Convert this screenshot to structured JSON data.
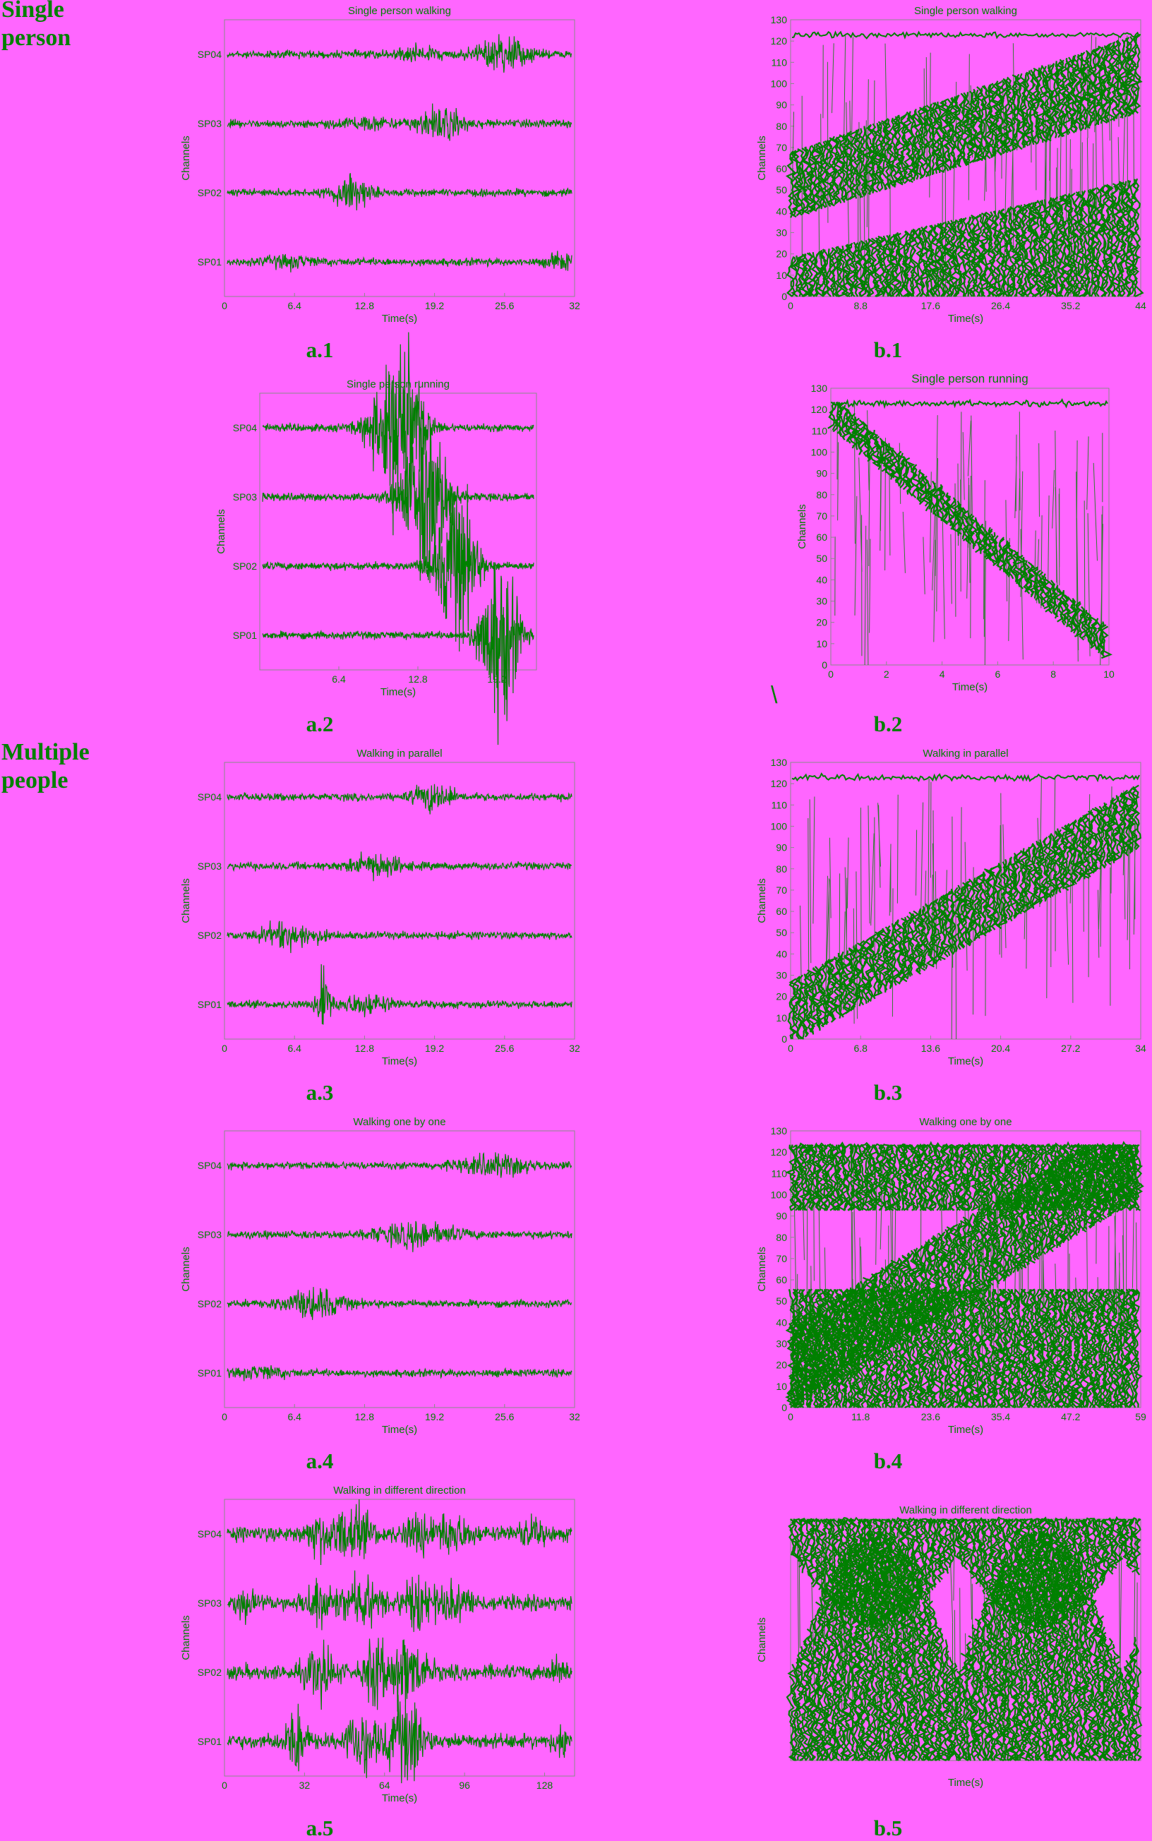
{
  "sections": [
    "Single\nperson",
    "Multiple\npeople"
  ],
  "stray_mark": "\\",
  "colors": {
    "background": "#ff66ff",
    "trace": "#008000",
    "axis": "#8a8a8a",
    "text": "#008000"
  },
  "captions": [
    "a.1",
    "b.1",
    "a.2",
    "b.2",
    "a.3",
    "b.3",
    "a.4",
    "b.4",
    "a.5",
    "b.5"
  ],
  "chart_data": [
    {
      "id": "a1",
      "type": "line",
      "title": "Single person walking",
      "xlabel": "Time(s)",
      "ylabel": "Channels",
      "xticks": [
        "0",
        "6.4",
        "12.8",
        "19.2",
        "25.6",
        "32"
      ],
      "xlim": [
        0,
        32
      ],
      "series": [
        {
          "name": "SP04"
        },
        {
          "name": "SP03"
        },
        {
          "name": "SP02"
        },
        {
          "name": "SP01"
        }
      ]
    },
    {
      "id": "b1",
      "type": "heatmap",
      "title": "Single person walking",
      "xlabel": "Time(s)",
      "ylabel": "Channels",
      "xticks": [
        "0",
        "8.8",
        "17.6",
        "26.4",
        "35.2",
        "44"
      ],
      "xlim": [
        0,
        44
      ],
      "yticks": [
        "0",
        "10",
        "20",
        "30",
        "40",
        "50",
        "60",
        "70",
        "80",
        "90",
        "100",
        "110",
        "120",
        "130"
      ],
      "ylim": [
        0,
        130
      ]
    },
    {
      "id": "a2",
      "type": "line",
      "title": "Single person running",
      "xlabel": "Time(s)",
      "ylabel": "Channels",
      "xticks": [
        "6.4",
        "12.8",
        "19.2"
      ],
      "xlim": [
        0,
        22.4
      ],
      "series": [
        {
          "name": "SP04"
        },
        {
          "name": "SP03"
        },
        {
          "name": "SP02"
        },
        {
          "name": "SP01"
        }
      ]
    },
    {
      "id": "b2",
      "type": "heatmap",
      "title": "Single person running",
      "xlabel": "Time(s)",
      "ylabel": "Channels",
      "xticks": [
        "0",
        "2",
        "4",
        "6",
        "8",
        "10"
      ],
      "xlim": [
        0,
        10
      ],
      "yticks": [
        "0",
        "10",
        "20",
        "30",
        "40",
        "50",
        "60",
        "70",
        "80",
        "90",
        "100",
        "110",
        "120",
        "130"
      ],
      "ylim": [
        0,
        130
      ]
    },
    {
      "id": "a3",
      "type": "line",
      "title": "Walking in parallel",
      "xlabel": "Time(s)",
      "ylabel": "Channels",
      "xticks": [
        "0",
        "6.4",
        "12.8",
        "19.2",
        "25.6",
        "32"
      ],
      "xlim": [
        0,
        32
      ],
      "series": [
        {
          "name": "SP04"
        },
        {
          "name": "SP03"
        },
        {
          "name": "SP02"
        },
        {
          "name": "SP01"
        }
      ]
    },
    {
      "id": "b3",
      "type": "heatmap",
      "title": "Walking in parallel",
      "xlabel": "Time(s)",
      "ylabel": "Channels",
      "xticks": [
        "0",
        "6.8",
        "13.6",
        "20.4",
        "27.2",
        "34"
      ],
      "xlim": [
        0,
        34
      ],
      "yticks": [
        "0",
        "10",
        "20",
        "30",
        "40",
        "50",
        "60",
        "70",
        "80",
        "90",
        "100",
        "110",
        "120",
        "130"
      ],
      "ylim": [
        0,
        130
      ]
    },
    {
      "id": "a4",
      "type": "line",
      "title": "Walking one by one",
      "xlabel": "Time(s)",
      "ylabel": "Channels",
      "xticks": [
        "0",
        "6.4",
        "12.8",
        "19.2",
        "25.6",
        "32"
      ],
      "xlim": [
        0,
        32
      ],
      "series": [
        {
          "name": "SP04"
        },
        {
          "name": "SP03"
        },
        {
          "name": "SP02"
        },
        {
          "name": "SP01"
        }
      ]
    },
    {
      "id": "b4",
      "type": "heatmap",
      "title": "Walking one by one",
      "xlabel": "Time(s)",
      "ylabel": "Channels",
      "xticks": [
        "0",
        "11.8",
        "23.6",
        "35.4",
        "47.2",
        "59"
      ],
      "xlim": [
        0,
        59
      ],
      "yticks": [
        "0",
        "10",
        "20",
        "30",
        "40",
        "50",
        "60",
        "70",
        "80",
        "90",
        "100",
        "110",
        "120",
        "130"
      ],
      "ylim": [
        0,
        130
      ]
    },
    {
      "id": "a5",
      "type": "line",
      "title": "Walking in different direction",
      "xlabel": "Time(s)",
      "ylabel": "Channels",
      "xticks": [
        "0",
        "32",
        "64",
        "96",
        "128"
      ],
      "xlim": [
        0,
        140
      ],
      "series": [
        {
          "name": "SP04"
        },
        {
          "name": "SP03"
        },
        {
          "name": "SP02"
        },
        {
          "name": "SP01"
        }
      ]
    },
    {
      "id": "b5",
      "type": "heatmap",
      "title": "Walking in different direction",
      "xlabel": "Time(s)",
      "ylabel": "Channels",
      "xticks": [],
      "yticks": []
    }
  ]
}
